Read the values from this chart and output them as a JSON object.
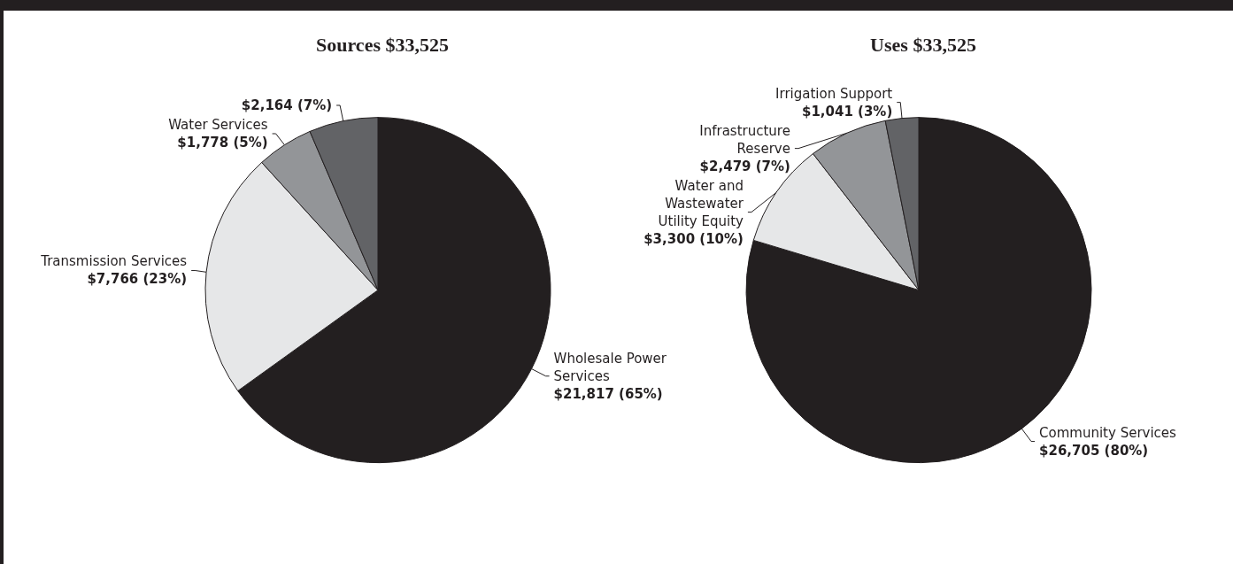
{
  "chart_data": [
    {
      "type": "pie",
      "title": "Sources $33,525",
      "categories": [
        "Wholesale Power Services",
        "Transmission Services",
        "Water Services",
        null
      ],
      "values": [
        21817,
        7766,
        1778,
        2164
      ],
      "value_labels": [
        "$21,817 (65%)",
        "$7,766 (23%)",
        "$1,778 (5%)",
        "$2,164 (7%)"
      ],
      "colors": [
        "#231f20",
        "#e6e7e8",
        "#939598",
        "#626366"
      ]
    },
    {
      "type": "pie",
      "title": "Uses $33,525",
      "categories": [
        "Community Services",
        "Water and Wastewater Utility Equity",
        "Infrastructure Reserve",
        "Irrigation Support"
      ],
      "values": [
        26705,
        3300,
        2479,
        1041
      ],
      "value_labels": [
        "$26,705 (80%)",
        "$3,300 (10%)",
        "$2,479 (7%)",
        "$1,041 (3%)"
      ],
      "colors": [
        "#231f20",
        "#e6e7e8",
        "#939598",
        "#626366"
      ]
    }
  ]
}
